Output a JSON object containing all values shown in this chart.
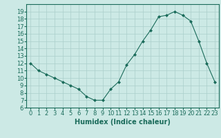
{
  "x": [
    0,
    1,
    2,
    3,
    4,
    5,
    6,
    7,
    8,
    9,
    10,
    11,
    12,
    13,
    14,
    15,
    16,
    17,
    18,
    19,
    20,
    21,
    22,
    23
  ],
  "y": [
    12,
    11,
    10.5,
    10,
    9.5,
    9,
    8.5,
    7.5,
    7,
    7,
    8.5,
    9.5,
    11.8,
    13.2,
    15,
    16.5,
    18.3,
    18.5,
    19,
    18.5,
    17.7,
    15,
    12,
    9.5
  ],
  "line_color": "#1a6b5a",
  "marker": "D",
  "marker_size": 2,
  "bg_color": "#cce9e5",
  "grid_color": "#aacfcb",
  "xlabel": "Humidex (Indice chaleur)",
  "ylim": [
    6,
    20
  ],
  "xlim": [
    -0.5,
    23.5
  ],
  "yticks": [
    6,
    7,
    8,
    9,
    10,
    11,
    12,
    13,
    14,
    15,
    16,
    17,
    18,
    19
  ],
  "xticks": [
    0,
    1,
    2,
    3,
    4,
    5,
    6,
    7,
    8,
    9,
    10,
    11,
    12,
    13,
    14,
    15,
    16,
    17,
    18,
    19,
    20,
    21,
    22,
    23
  ],
  "xlabel_fontsize": 7,
  "tick_fontsize": 6,
  "title_color": "#1a6b5a"
}
